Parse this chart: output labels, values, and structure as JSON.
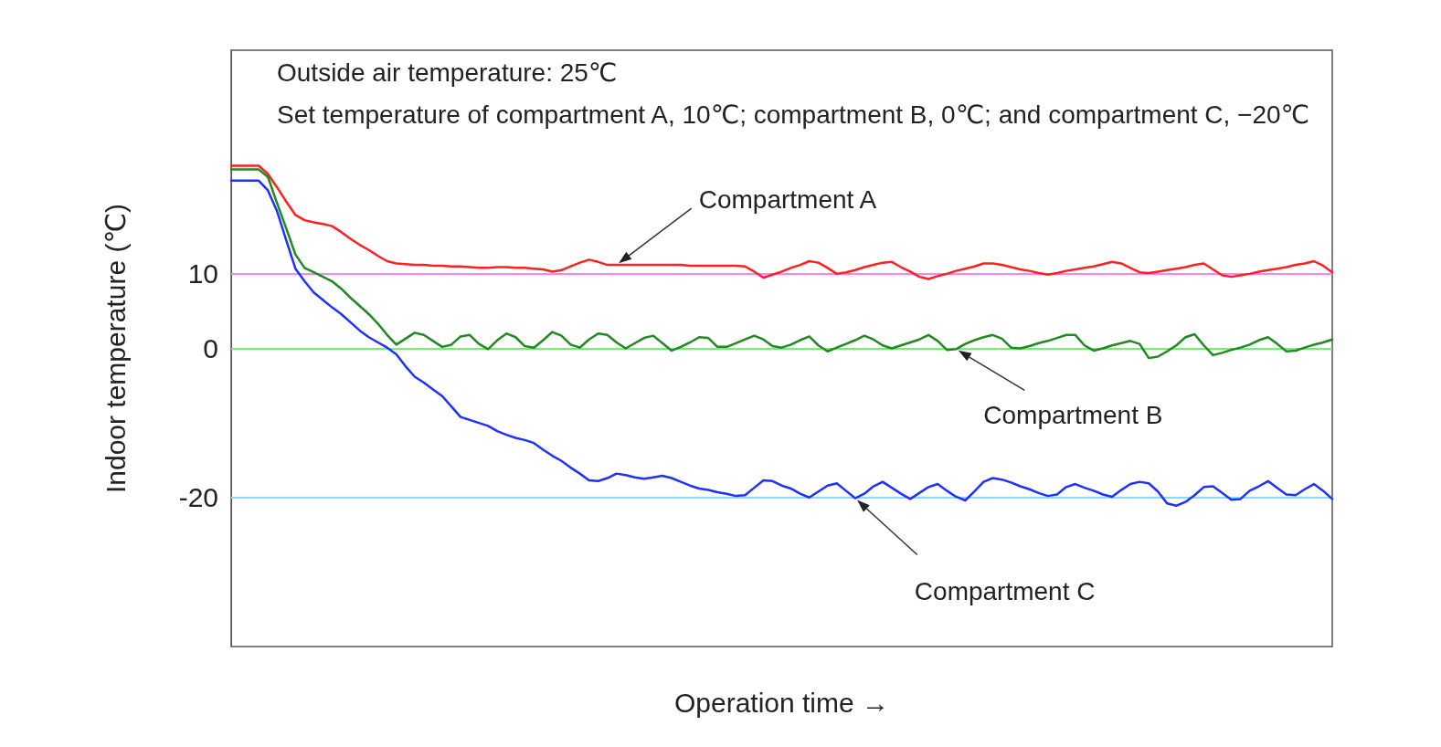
{
  "chart_data": {
    "type": "line",
    "annotations": [
      "Outside air temperature: 25℃",
      "Set temperature of compartment A, 10℃; compartment B, 0℃; and compartment C, −20℃"
    ],
    "xlabel": "Operation time →",
    "ylabel": "Indoor temperature (℃)",
    "categories": [
      null,
      null,
      null,
      null,
      null,
      null,
      null,
      null,
      null,
      null,
      null,
      null,
      null,
      null,
      null,
      null,
      null,
      null,
      null,
      null,
      null,
      null,
      null,
      null,
      null,
      null,
      null,
      null,
      null,
      null,
      null,
      null,
      null,
      null,
      null,
      null,
      null,
      null,
      null,
      null,
      null,
      null,
      null,
      null,
      null,
      null,
      null,
      null,
      null,
      null,
      null,
      null,
      null,
      null,
      null,
      null,
      null,
      null,
      null,
      null,
      null,
      null,
      null,
      null,
      null,
      null,
      null,
      null,
      null,
      null,
      null,
      null,
      null,
      null,
      null,
      null,
      null,
      null,
      null,
      null,
      null,
      null,
      null,
      null,
      null,
      null,
      null,
      null,
      null,
      null,
      null,
      null,
      null,
      null,
      null,
      null,
      null,
      null,
      null,
      null,
      null,
      null,
      null,
      null,
      null,
      null,
      null,
      null,
      null,
      null,
      null,
      null,
      null,
      null,
      null,
      null,
      null,
      null,
      null,
      null,
      null
    ],
    "series": [
      {
        "name": "Compartment A",
        "color": "#ff2020",
        "values": [
          24.5,
          24.5,
          24.5,
          24.5,
          23.4,
          21.6,
          19.7,
          17.9,
          17.2,
          16.9,
          16.7,
          16.4,
          15.6,
          14.7,
          13.9,
          13.2,
          12.4,
          11.7,
          11.4,
          11.3,
          11.2,
          11.2,
          11.1,
          11.1,
          11.0,
          11.0,
          10.9,
          10.8,
          10.8,
          10.9,
          10.9,
          10.8,
          10.8,
          10.7,
          10.6,
          10.3,
          10.5,
          11.0,
          11.5,
          11.9,
          11.6,
          11.2,
          11.2,
          11.2,
          11.2,
          11.2,
          11.2,
          11.2,
          11.2,
          11.2,
          11.1,
          11.1,
          11.1,
          11.1,
          11.1,
          11.1,
          11.0,
          10.3,
          9.5,
          9.9,
          10.3,
          10.8,
          11.2,
          11.7,
          11.5,
          10.8,
          10.0,
          10.2,
          10.5,
          10.9,
          11.2,
          11.5,
          11.6,
          10.9,
          10.3,
          9.6,
          9.3,
          9.7,
          10.0,
          10.4,
          10.7,
          11.0,
          11.4,
          11.4,
          11.2,
          10.9,
          10.6,
          10.4,
          10.1,
          9.9,
          10.1,
          10.4,
          10.6,
          10.8,
          11.0,
          11.3,
          11.6,
          11.4,
          10.8,
          10.2,
          10.1,
          10.3,
          10.5,
          10.7,
          10.9,
          11.2,
          11.4,
          10.6,
          9.8,
          9.6,
          9.8,
          10.0,
          10.3,
          10.5,
          10.7,
          10.9,
          11.2,
          11.4,
          11.7,
          11.1,
          10.2
        ]
      },
      {
        "name": "Compartment B",
        "color": "#208a20",
        "values": [
          24,
          24,
          24,
          24,
          23.0,
          19.5,
          16.1,
          12.6,
          10.8,
          10.2,
          9.6,
          9.0,
          8.0,
          6.8,
          5.7,
          4.6,
          3.3,
          1.8,
          0.5,
          1.3,
          2.1,
          1.8,
          1.0,
          0.2,
          0.5,
          1.6,
          1.8,
          0.6,
          -0.1,
          1.1,
          2.0,
          1.5,
          0.3,
          0.1,
          1.1,
          2.2,
          1.7,
          0.5,
          0.1,
          1.2,
          2.0,
          1.8,
          0.8,
          0.0,
          0.7,
          1.4,
          1.7,
          0.7,
          -0.3,
          0.2,
          0.8,
          1.5,
          1.4,
          0.2,
          0.2,
          0.7,
          1.2,
          1.7,
          1.2,
          0.3,
          0.1,
          0.5,
          1.1,
          1.6,
          0.4,
          -0.4,
          0.1,
          0.6,
          1.1,
          1.7,
          1.2,
          0.4,
          0.0,
          0.4,
          0.8,
          1.2,
          1.8,
          1.0,
          -0.2,
          -0.1,
          0.6,
          1.1,
          1.5,
          1.8,
          1.3,
          0.1,
          0.0,
          0.3,
          0.7,
          1.0,
          1.4,
          1.8,
          1.8,
          0.4,
          -0.3,
          0.0,
          0.4,
          0.7,
          1.0,
          0.6,
          -1.3,
          -1.1,
          -0.4,
          0.4,
          1.5,
          1.9,
          0.4,
          -0.9,
          -0.6,
          -0.2,
          0.1,
          0.5,
          1.1,
          1.5,
          0.6,
          -0.4,
          -0.3,
          0.1,
          0.5,
          0.8,
          1.2
        ]
      },
      {
        "name": "Compartment C",
        "color": "#2030ff",
        "values": [
          22.5,
          22.5,
          22.5,
          22.5,
          21.2,
          18.4,
          14.5,
          10.7,
          9.0,
          7.5,
          6.5,
          5.5,
          4.6,
          3.5,
          2.4,
          1.5,
          0.8,
          0.1,
          -0.8,
          -2.4,
          -3.8,
          -4.6,
          -5.5,
          -6.4,
          -7.8,
          -9.2,
          -9.6,
          -10.0,
          -10.4,
          -11.1,
          -11.6,
          -12.0,
          -12.3,
          -12.7,
          -13.6,
          -14.4,
          -15.1,
          -16.0,
          -16.8,
          -17.7,
          -17.8,
          -17.4,
          -16.8,
          -17.0,
          -17.3,
          -17.5,
          -17.3,
          -17.1,
          -17.4,
          -17.9,
          -18.4,
          -18.8,
          -19.0,
          -19.3,
          -19.5,
          -19.8,
          -19.7,
          -18.7,
          -17.7,
          -17.8,
          -18.4,
          -18.8,
          -19.5,
          -20.0,
          -19.2,
          -18.4,
          -18.1,
          -19.1,
          -20.1,
          -19.5,
          -18.5,
          -17.9,
          -18.7,
          -19.5,
          -20.2,
          -19.4,
          -18.6,
          -18.2,
          -19.1,
          -19.9,
          -20.4,
          -19.2,
          -17.9,
          -17.4,
          -17.6,
          -18.0,
          -18.5,
          -18.9,
          -19.4,
          -19.8,
          -19.6,
          -18.6,
          -18.2,
          -18.7,
          -19.1,
          -19.6,
          -19.9,
          -19.0,
          -18.2,
          -17.9,
          -18.1,
          -19.2,
          -20.8,
          -21.1,
          -20.6,
          -19.7,
          -18.6,
          -18.5,
          -19.4,
          -20.3,
          -20.2,
          -19.1,
          -18.5,
          -17.8,
          -18.7,
          -19.6,
          -19.7,
          -18.9,
          -18.2,
          -19.1,
          -20.2
        ]
      }
    ],
    "ylim": [
      -40,
      40
    ],
    "yticks": [
      10,
      0,
      -20
    ],
    "ref_lines": [
      {
        "axis": "y",
        "value": 10,
        "color": "#ff80ff"
      },
      {
        "axis": "y",
        "value": 0,
        "color": "#70f070"
      },
      {
        "axis": "y",
        "value": -20,
        "color": "#80e0ff"
      }
    ],
    "tick_labels": "y",
    "grid": false,
    "legend": false,
    "marker": "none",
    "line_style": "solid"
  }
}
